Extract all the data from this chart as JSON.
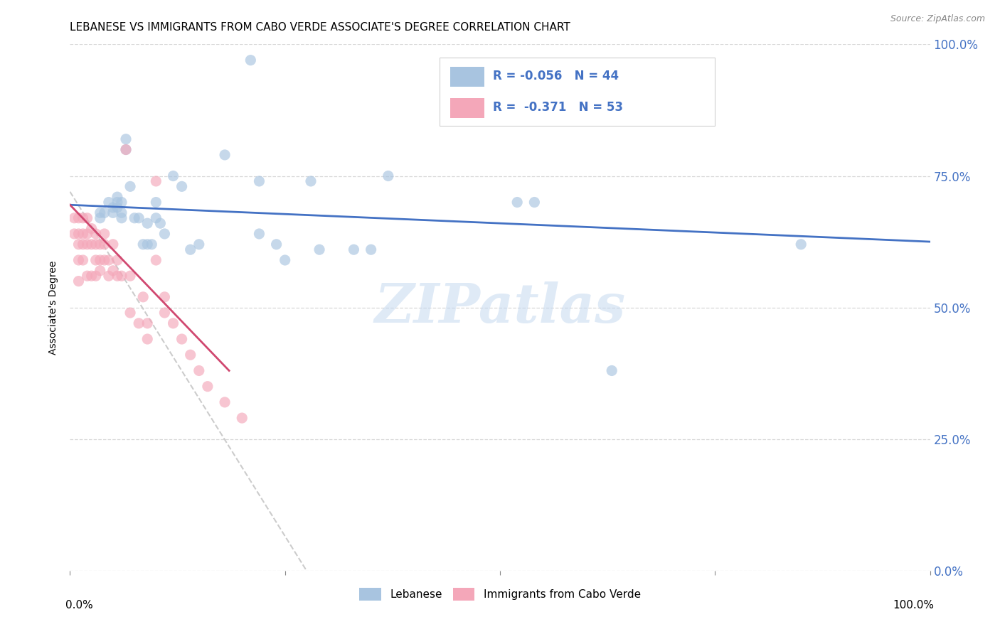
{
  "title": "LEBANESE VS IMMIGRANTS FROM CABO VERDE ASSOCIATE'S DEGREE CORRELATION CHART",
  "source": "Source: ZipAtlas.com",
  "ylabel": "Associate's Degree",
  "watermark": "ZIPatlas",
  "legend1_label": "R = -0.056   N = 44",
  "legend2_label": "R =  -0.371   N = 53",
  "blue_color": "#a8c4e0",
  "pink_color": "#f4a7b9",
  "trendline_blue": "#4472c4",
  "trendline_pink": "#d04870",
  "trendline_gray": "#cccccc",
  "right_axis_color": "#4472c4",
  "blue_scatter_x": [
    0.21,
    0.035,
    0.035,
    0.04,
    0.045,
    0.05,
    0.05,
    0.055,
    0.055,
    0.055,
    0.06,
    0.06,
    0.06,
    0.065,
    0.065,
    0.07,
    0.075,
    0.08,
    0.085,
    0.09,
    0.09,
    0.095,
    0.1,
    0.1,
    0.105,
    0.11,
    0.12,
    0.13,
    0.14,
    0.15,
    0.18,
    0.22,
    0.22,
    0.24,
    0.25,
    0.28,
    0.29,
    0.33,
    0.35,
    0.37,
    0.52,
    0.54,
    0.63,
    0.85
  ],
  "blue_scatter_y": [
    0.97,
    0.68,
    0.67,
    0.68,
    0.7,
    0.69,
    0.68,
    0.71,
    0.7,
    0.69,
    0.7,
    0.68,
    0.67,
    0.82,
    0.8,
    0.73,
    0.67,
    0.67,
    0.62,
    0.66,
    0.62,
    0.62,
    0.67,
    0.7,
    0.66,
    0.64,
    0.75,
    0.73,
    0.61,
    0.62,
    0.79,
    0.74,
    0.64,
    0.62,
    0.59,
    0.74,
    0.61,
    0.61,
    0.61,
    0.75,
    0.7,
    0.7,
    0.38,
    0.62
  ],
  "pink_scatter_x": [
    0.005,
    0.005,
    0.01,
    0.01,
    0.01,
    0.01,
    0.01,
    0.015,
    0.015,
    0.015,
    0.015,
    0.02,
    0.02,
    0.02,
    0.02,
    0.025,
    0.025,
    0.025,
    0.03,
    0.03,
    0.03,
    0.03,
    0.035,
    0.035,
    0.035,
    0.04,
    0.04,
    0.04,
    0.045,
    0.045,
    0.05,
    0.05,
    0.055,
    0.055,
    0.06,
    0.065,
    0.07,
    0.07,
    0.08,
    0.085,
    0.09,
    0.09,
    0.1,
    0.1,
    0.11,
    0.11,
    0.12,
    0.13,
    0.14,
    0.15,
    0.16,
    0.18,
    0.2
  ],
  "pink_scatter_y": [
    0.67,
    0.64,
    0.67,
    0.64,
    0.62,
    0.59,
    0.55,
    0.67,
    0.64,
    0.62,
    0.59,
    0.67,
    0.64,
    0.62,
    0.56,
    0.65,
    0.62,
    0.56,
    0.64,
    0.62,
    0.59,
    0.56,
    0.62,
    0.59,
    0.57,
    0.64,
    0.62,
    0.59,
    0.59,
    0.56,
    0.62,
    0.57,
    0.59,
    0.56,
    0.56,
    0.8,
    0.49,
    0.56,
    0.47,
    0.52,
    0.47,
    0.44,
    0.74,
    0.59,
    0.49,
    0.52,
    0.47,
    0.44,
    0.41,
    0.38,
    0.35,
    0.32,
    0.29
  ],
  "blue_trend_x": [
    0.0,
    1.0
  ],
  "blue_trend_y": [
    0.695,
    0.625
  ],
  "pink_trend_x": [
    0.0,
    0.185
  ],
  "pink_trend_y": [
    0.695,
    0.38
  ],
  "gray_trend_x": [
    0.0,
    0.275
  ],
  "gray_trend_y": [
    0.72,
    0.0
  ],
  "yticks": [
    0.0,
    0.25,
    0.5,
    0.75,
    1.0
  ],
  "ytick_labels_right": [
    "0.0%",
    "25.0%",
    "50.0%",
    "75.0%",
    "100.0%"
  ],
  "xlim": [
    0.0,
    1.0
  ],
  "ylim": [
    0.0,
    1.0
  ],
  "background_color": "#ffffff",
  "grid_color": "#d8d8d8",
  "title_fontsize": 11,
  "scatter_size": 120,
  "scatter_alpha": 0.65,
  "legend_label1": "Lebanese",
  "legend_label2": "Immigrants from Cabo Verde"
}
